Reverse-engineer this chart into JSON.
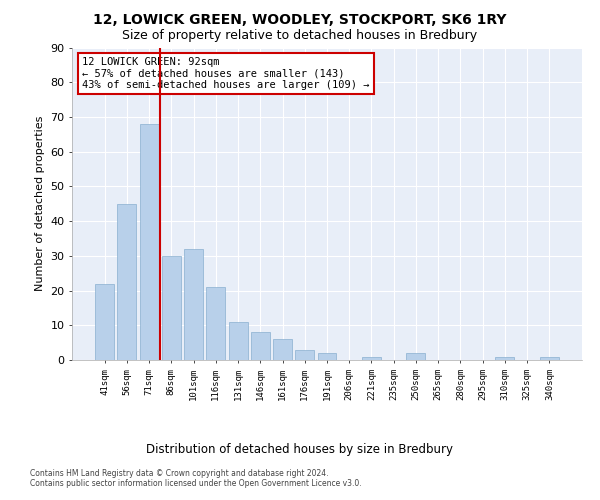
{
  "title": "12, LOWICK GREEN, WOODLEY, STOCKPORT, SK6 1RY",
  "subtitle": "Size of property relative to detached houses in Bredbury",
  "xlabel": "Distribution of detached houses by size in Bredbury",
  "ylabel": "Number of detached properties",
  "categories": [
    "41sqm",
    "56sqm",
    "71sqm",
    "86sqm",
    "101sqm",
    "116sqm",
    "131sqm",
    "146sqm",
    "161sqm",
    "176sqm",
    "191sqm",
    "206sqm",
    "221sqm",
    "235sqm",
    "250sqm",
    "265sqm",
    "280sqm",
    "295sqm",
    "310sqm",
    "325sqm",
    "340sqm"
  ],
  "values": [
    22,
    45,
    68,
    30,
    32,
    21,
    11,
    8,
    6,
    3,
    2,
    0,
    1,
    0,
    2,
    0,
    0,
    0,
    1,
    0,
    1
  ],
  "bar_color": "#b8d0ea",
  "bar_edge_color": "#8ab0d0",
  "vline_color": "#cc0000",
  "vline_x_index": 3,
  "annotation_title": "12 LOWICK GREEN: 92sqm",
  "annotation_line2": "← 57% of detached houses are smaller (143)",
  "annotation_line3": "43% of semi-detached houses are larger (109) →",
  "annotation_box_color": "#ffffff",
  "annotation_box_edge": "#cc0000",
  "ylim": [
    0,
    90
  ],
  "yticks": [
    0,
    10,
    20,
    30,
    40,
    50,
    60,
    70,
    80,
    90
  ],
  "background_color": "#e8eef8",
  "footer_line1": "Contains HM Land Registry data © Crown copyright and database right 2024.",
  "footer_line2": "Contains public sector information licensed under the Open Government Licence v3.0."
}
